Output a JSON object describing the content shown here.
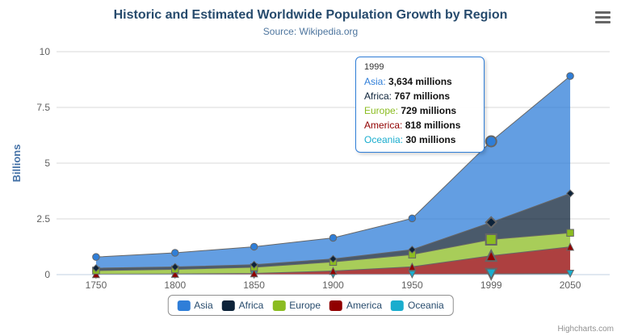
{
  "header": {
    "title": "Historic and Estimated Worldwide Population Growth by Region",
    "subtitle": "Source: Wikipedia.org"
  },
  "export_menu": {
    "icon": "hamburger-menu-icon"
  },
  "y_axis": {
    "title": "Billions",
    "tick_labels": [
      "0",
      "2.5",
      "5",
      "7.5",
      "10"
    ]
  },
  "x_axis": {
    "categories": [
      "1750",
      "1800",
      "1850",
      "1900",
      "1950",
      "1999",
      "2050"
    ]
  },
  "chart_data": {
    "type": "area",
    "stacking": "normal",
    "title": "Historic and Estimated Worldwide Population Growth by Region",
    "subtitle": "Source: Wikipedia.org",
    "xlabel": "",
    "ylabel": "Billions",
    "ylim": [
      0,
      10
    ],
    "grid": "horizontal",
    "legend_position": "bottom",
    "categories": [
      "1750",
      "1800",
      "1850",
      "1900",
      "1950",
      "1999",
      "2050"
    ],
    "values_unit": "millions",
    "series": [
      {
        "name": "Asia",
        "color": "#2f7ed8",
        "marker": "circle",
        "values": [
          502,
          635,
          809,
          947,
          1402,
          3634,
          5268
        ]
      },
      {
        "name": "Africa",
        "color": "#0d233a",
        "marker": "diamond",
        "values": [
          106,
          107,
          111,
          133,
          221,
          767,
          1766
        ]
      },
      {
        "name": "Europe",
        "color": "#8bbc21",
        "marker": "square",
        "values": [
          163,
          203,
          276,
          408,
          547,
          729,
          628
        ]
      },
      {
        "name": "America",
        "color": "#910000",
        "marker": "triangle-up",
        "values": [
          18,
          31,
          54,
          156,
          339,
          818,
          1201
        ]
      },
      {
        "name": "Oceania",
        "color": "#1aadce",
        "marker": "triangle-down",
        "values": [
          2,
          2,
          2,
          6,
          13,
          30,
          46
        ]
      }
    ],
    "stack_order_bottom_to_top": [
      "Oceania",
      "America",
      "Europe",
      "Africa",
      "Asia"
    ],
    "hovered_category": "1999"
  },
  "tooltip": {
    "header": "1999",
    "rows": [
      {
        "name": "Asia",
        "value": "3,634 millions",
        "color": "#2f7ed8"
      },
      {
        "name": "Africa",
        "value": "767 millions",
        "color": "#0d233a"
      },
      {
        "name": "Europe",
        "value": "729 millions",
        "color": "#8bbc21"
      },
      {
        "name": "America",
        "value": "818 millions",
        "color": "#910000"
      },
      {
        "name": "Oceania",
        "value": "30 millions",
        "color": "#1aadce"
      }
    ]
  },
  "legend": {
    "items": [
      {
        "label": "Asia",
        "color": "#2f7ed8"
      },
      {
        "label": "Africa",
        "color": "#0d233a"
      },
      {
        "label": "Europe",
        "color": "#8bbc21"
      },
      {
        "label": "America",
        "color": "#910000"
      },
      {
        "label": "Oceania",
        "color": "#1aadce"
      }
    ]
  },
  "credits": {
    "text": "Highcharts.com"
  },
  "theme": {
    "title_color": "#274b6d",
    "subtitle_color": "#4d759e",
    "axis_label_color": "#606060",
    "axis_title_color": "#4572a7",
    "grid_color": "#d8d8d8",
    "x_axis_line_color": "#c0d0e0",
    "series_line_color": "#666666",
    "legend_text_color": "#274b6d",
    "tooltip_border_color": "#2f7ed8",
    "credits_color": "#909090"
  }
}
